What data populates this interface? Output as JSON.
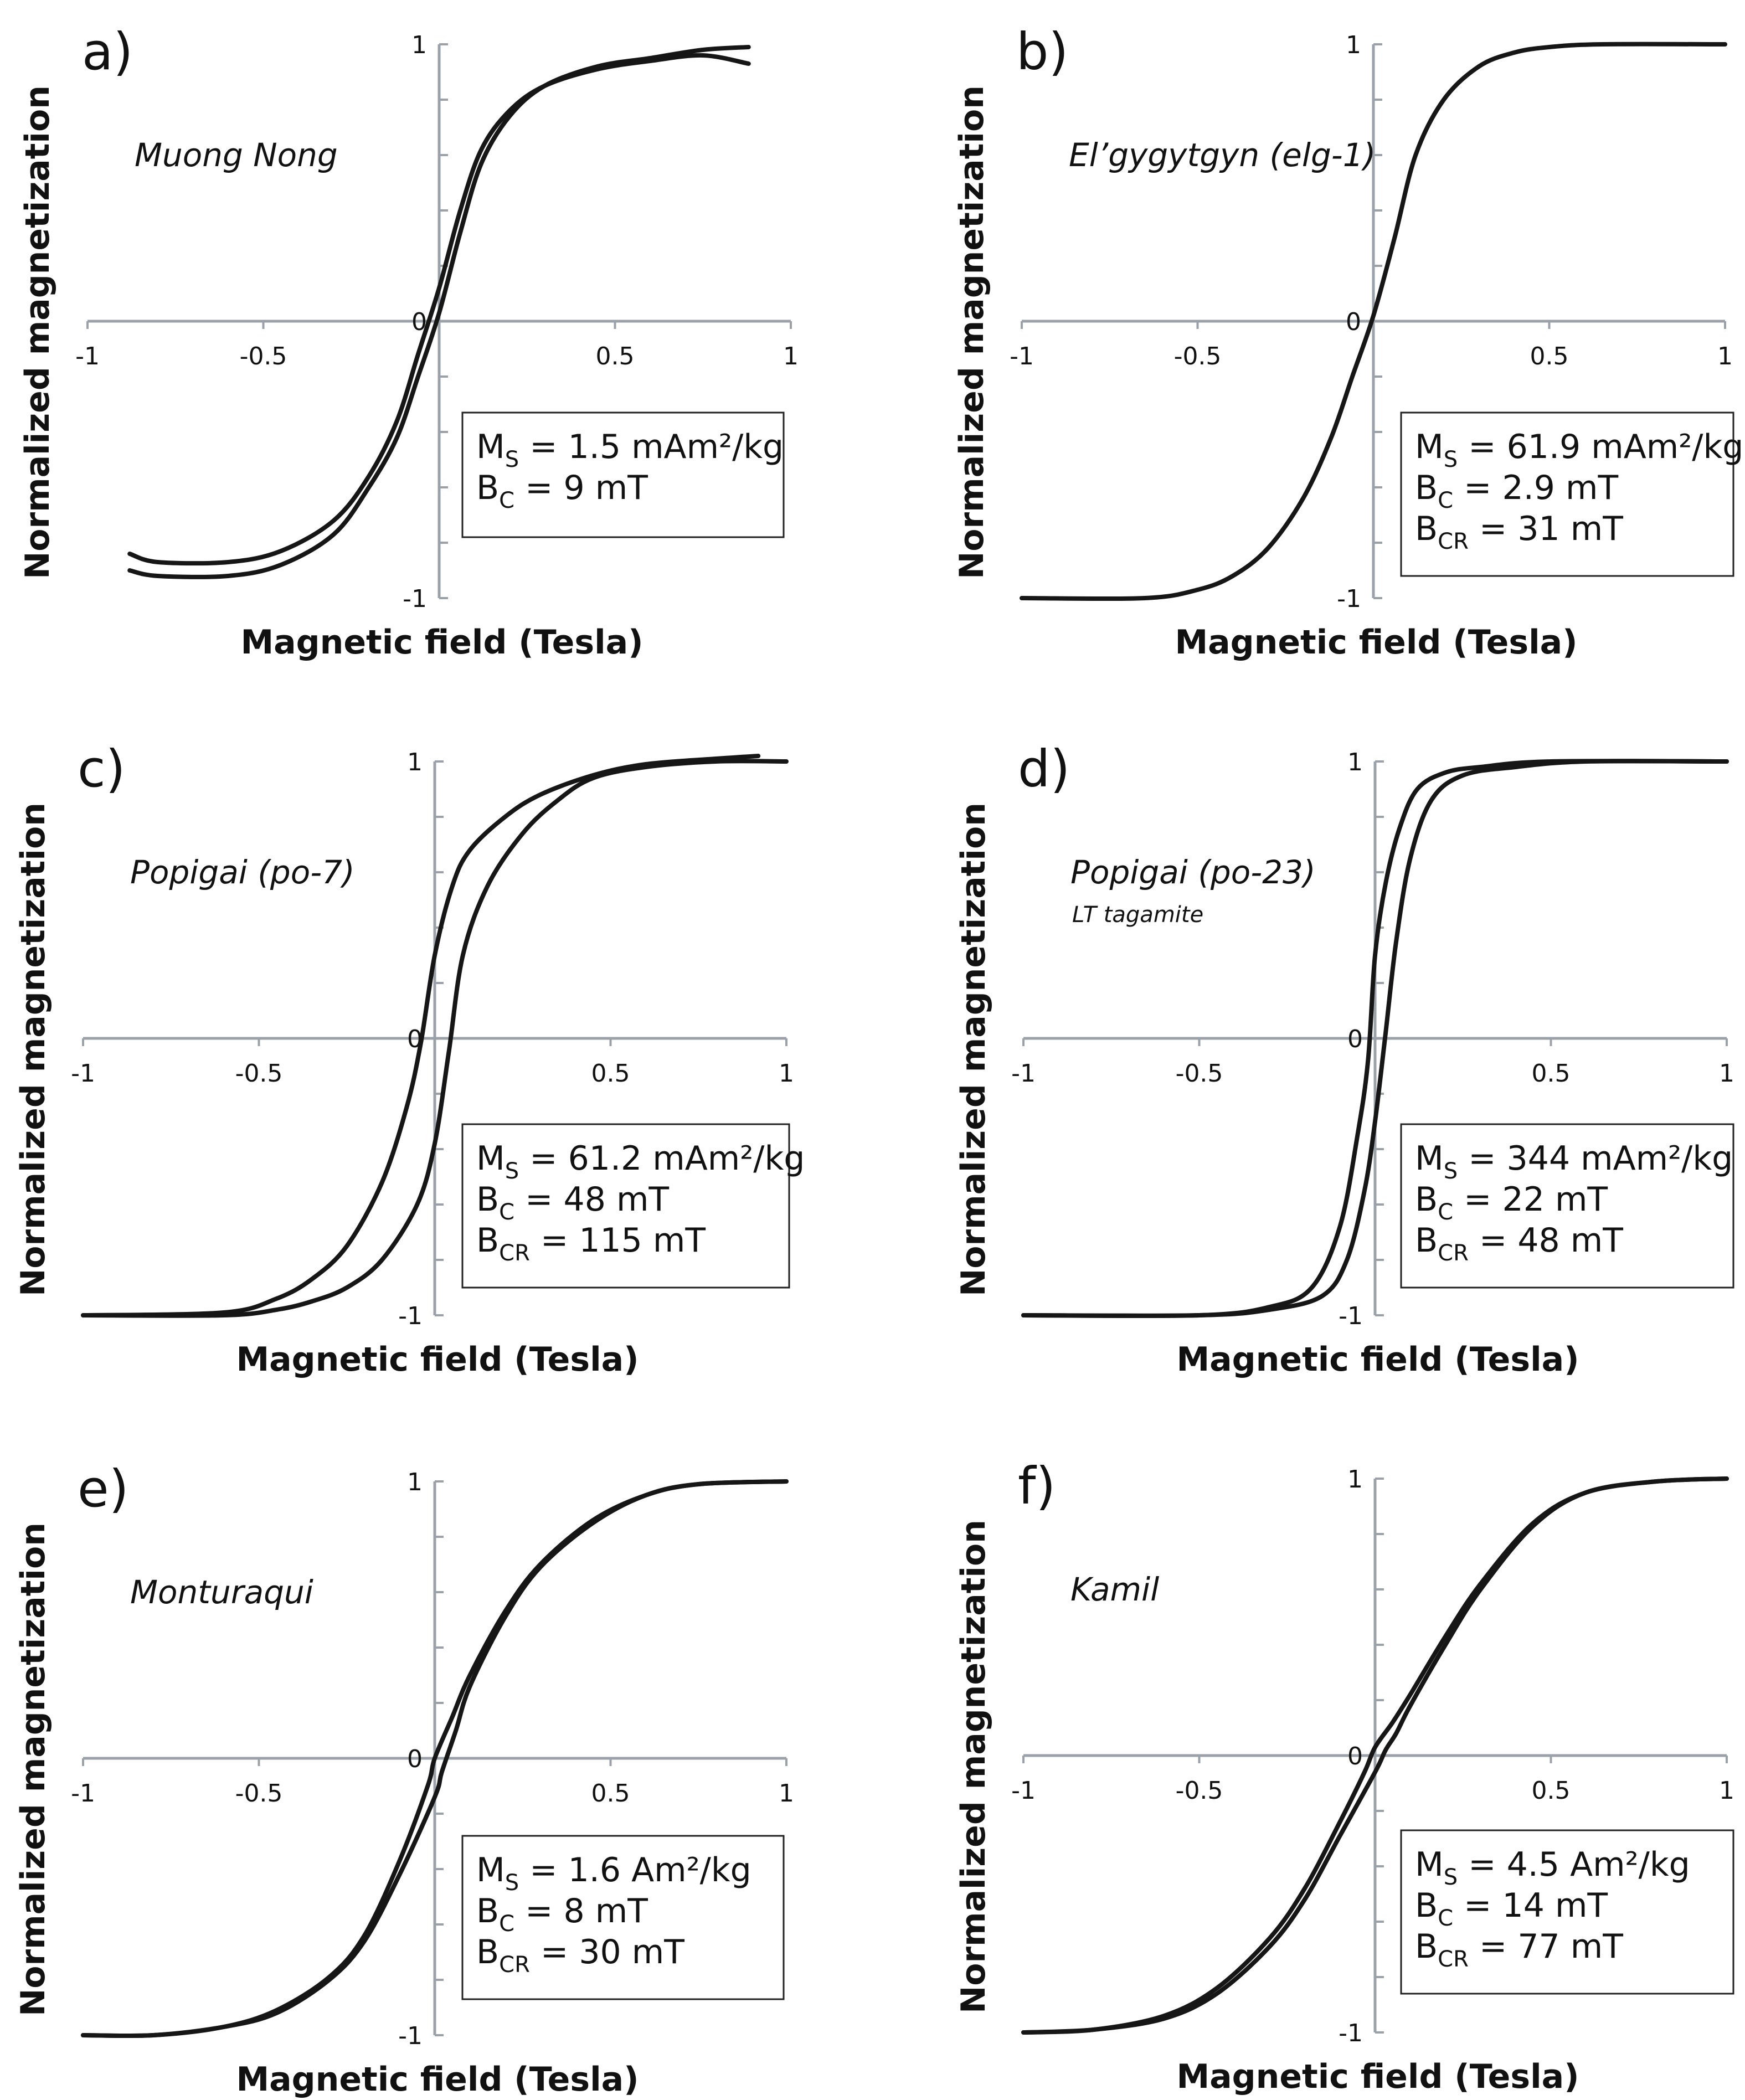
{
  "figure": {
    "x_axis_title": "Magnetic field (Tesla)",
    "y_axis_title": "Normalized magnetization",
    "axis_color": "#9aa1a8",
    "curve_color": "#161616"
  },
  "chart_data": [
    {
      "type": "line",
      "panel": "a)",
      "sample": "Muong Nong",
      "subtitle": "",
      "xlabel": "Magnetic field (Tesla)",
      "ylabel": "Normalized magnetization",
      "xlim": [
        -1,
        1
      ],
      "ylim": [
        -1,
        1
      ],
      "x_ticks": [
        "-1",
        "-0.5",
        "0",
        "0.5",
        "1"
      ],
      "y_ticks": [
        "1",
        "0",
        "-1"
      ],
      "stats": [
        {
          "sym": "M",
          "sub": "S",
          "rest": " = 1.5 mAm²/kg"
        },
        {
          "sym": "B",
          "sub": "C",
          "rest": " = 9 mT"
        }
      ],
      "series": [
        {
          "name": "upper branch",
          "x": [
            -0.88,
            -0.8,
            -0.6,
            -0.45,
            -0.3,
            -0.2,
            -0.12,
            -0.06,
            0.0,
            0.06,
            0.12,
            0.2,
            0.3,
            0.45,
            0.6,
            0.75,
            0.88
          ],
          "y": [
            -0.84,
            -0.87,
            -0.87,
            -0.83,
            -0.72,
            -0.56,
            -0.36,
            -0.12,
            0.12,
            0.4,
            0.62,
            0.76,
            0.85,
            0.91,
            0.94,
            0.96,
            0.93
          ]
        },
        {
          "name": "lower branch",
          "x": [
            -0.88,
            -0.8,
            -0.6,
            -0.45,
            -0.3,
            -0.2,
            -0.12,
            -0.06,
            0.0,
            0.06,
            0.12,
            0.2,
            0.3,
            0.45,
            0.6,
            0.75,
            0.88
          ],
          "y": [
            -0.9,
            -0.92,
            -0.92,
            -0.88,
            -0.77,
            -0.6,
            -0.42,
            -0.2,
            0.03,
            0.32,
            0.57,
            0.74,
            0.85,
            0.92,
            0.95,
            0.98,
            0.99
          ]
        }
      ]
    },
    {
      "type": "line",
      "panel": "b)",
      "sample": "El’gygytgyn (elg-1)",
      "subtitle": "",
      "xlabel": "Magnetic field (Tesla)",
      "ylabel": "Normalized magnetization",
      "xlim": [
        -1,
        1
      ],
      "ylim": [
        -1,
        1
      ],
      "x_ticks": [
        "-1",
        "-0.5",
        "0",
        "0.5",
        "1"
      ],
      "y_ticks": [
        "1",
        "0",
        "-1"
      ],
      "stats": [
        {
          "sym": "M",
          "sub": "S",
          "rest": " = 61.9 mAm²/kg"
        },
        {
          "sym": "B",
          "sub": "C",
          "rest": " = 2.9 mT"
        },
        {
          "sym": "B",
          "sub": "CR",
          "rest": " = 31 mT"
        }
      ],
      "series": [
        {
          "name": "loop",
          "x": [
            -1,
            -0.65,
            -0.5,
            -0.4,
            -0.3,
            -0.2,
            -0.12,
            -0.06,
            0.0,
            0.06,
            0.12,
            0.2,
            0.3,
            0.4,
            0.5,
            0.65,
            1
          ],
          "y": [
            -1,
            -1,
            -0.97,
            -0.92,
            -0.82,
            -0.64,
            -0.42,
            -0.2,
            0.02,
            0.3,
            0.6,
            0.8,
            0.92,
            0.97,
            0.99,
            1,
            1
          ]
        }
      ]
    },
    {
      "type": "line",
      "panel": "c)",
      "sample": "Popigai (po-7)",
      "subtitle": "",
      "xlabel": "Magnetic field (Tesla)",
      "ylabel": "Normalized magnetization",
      "xlim": [
        -1,
        1
      ],
      "ylim": [
        -1,
        1
      ],
      "x_ticks": [
        "-1",
        "-0.5",
        "0",
        "0.5",
        "1"
      ],
      "y_ticks": [
        "1",
        "0",
        "-1"
      ],
      "stats": [
        {
          "sym": "M",
          "sub": "S",
          "rest": " = 61.2 mAm²/kg"
        },
        {
          "sym": "B",
          "sub": "C",
          "rest": " = 48 mT"
        },
        {
          "sym": "B",
          "sub": "CR",
          "rest": " = 115 mT"
        }
      ],
      "series": [
        {
          "name": "upper branch",
          "x": [
            -1,
            -0.6,
            -0.45,
            -0.35,
            -0.25,
            -0.15,
            -0.08,
            -0.04,
            0.0,
            0.05,
            0.1,
            0.2,
            0.3,
            0.45,
            0.6,
            0.8,
            0.92
          ],
          "y": [
            -1,
            -0.99,
            -0.94,
            -0.87,
            -0.75,
            -0.52,
            -0.25,
            -0.02,
            0.3,
            0.55,
            0.68,
            0.8,
            0.88,
            0.95,
            0.99,
            1.01,
            1.02
          ]
        },
        {
          "name": "lower branch",
          "x": [
            -1,
            -0.6,
            -0.45,
            -0.35,
            -0.25,
            -0.15,
            -0.05,
            0.0,
            0.04,
            0.08,
            0.15,
            0.25,
            0.35,
            0.45,
            0.6,
            0.8,
            1.0
          ],
          "y": [
            -1,
            -1,
            -0.98,
            -0.95,
            -0.9,
            -0.8,
            -0.6,
            -0.38,
            -0.05,
            0.3,
            0.55,
            0.74,
            0.86,
            0.94,
            0.98,
            1.0,
            1.0
          ]
        }
      ]
    },
    {
      "type": "line",
      "panel": "d)",
      "sample": "Popigai (po-23)",
      "subtitle": "LT tagamite",
      "xlabel": "Magnetic field (Tesla)",
      "ylabel": "Normalized magnetization",
      "xlim": [
        -1,
        1
      ],
      "ylim": [
        -1,
        1
      ],
      "x_ticks": [
        "-1",
        "-0.5",
        "0",
        "0.5",
        "1"
      ],
      "y_ticks": [
        "1",
        "0",
        "-1"
      ],
      "stats": [
        {
          "sym": "M",
          "sub": "S",
          "rest": " = 344 mAm²/kg"
        },
        {
          "sym": "B",
          "sub": "C",
          "rest": " = 22 mT"
        },
        {
          "sym": "B",
          "sub": "CR",
          "rest": " = 48 mT"
        }
      ],
      "series": [
        {
          "name": "upper branch",
          "x": [
            -1,
            -0.5,
            -0.3,
            -0.18,
            -0.1,
            -0.05,
            -0.02,
            0.0,
            0.03,
            0.07,
            0.12,
            0.2,
            0.3,
            0.5,
            1
          ],
          "y": [
            -1,
            -1,
            -0.97,
            -0.9,
            -0.68,
            -0.35,
            -0.08,
            0.3,
            0.56,
            0.76,
            0.9,
            0.96,
            0.98,
            1,
            1
          ]
        },
        {
          "name": "lower branch",
          "x": [
            -1,
            -0.5,
            -0.3,
            -0.15,
            -0.08,
            -0.03,
            0.0,
            0.03,
            0.06,
            0.1,
            0.16,
            0.25,
            0.4,
            0.6,
            1
          ],
          "y": [
            -1,
            -1,
            -0.98,
            -0.93,
            -0.8,
            -0.55,
            -0.3,
            0.02,
            0.35,
            0.65,
            0.86,
            0.95,
            0.98,
            1,
            1
          ]
        }
      ]
    },
    {
      "type": "line",
      "panel": "e)",
      "sample": "Monturaqui",
      "subtitle": "",
      "xlabel": "Magnetic field (Tesla)",
      "ylabel": "Normalized magnetization",
      "xlim": [
        -1,
        1
      ],
      "ylim": [
        -1,
        1
      ],
      "x_ticks": [
        "-1",
        "-0.5",
        "0",
        "0.5",
        "1"
      ],
      "y_ticks": [
        "1",
        "0",
        "-1"
      ],
      "stats": [
        {
          "sym": "M",
          "sub": "S",
          "rest": " = 1.6 Am²/kg"
        },
        {
          "sym": "B",
          "sub": "C",
          "rest": " = 8 mT"
        },
        {
          "sym": "B",
          "sub": "CR",
          "rest": " = 30 mT"
        }
      ],
      "series": [
        {
          "name": "upper branch",
          "x": [
            -1,
            -0.8,
            -0.6,
            -0.45,
            -0.3,
            -0.2,
            -0.1,
            -0.02,
            0.0,
            0.05,
            0.1,
            0.2,
            0.3,
            0.45,
            0.6,
            0.75,
            1
          ],
          "y": [
            -1,
            -1,
            -0.97,
            -0.91,
            -0.79,
            -0.64,
            -0.37,
            -0.1,
            0.0,
            0.15,
            0.3,
            0.53,
            0.7,
            0.86,
            0.95,
            0.99,
            1
          ]
        },
        {
          "name": "lower branch",
          "x": [
            -1,
            -0.8,
            -0.6,
            -0.45,
            -0.3,
            -0.2,
            -0.1,
            0.0,
            0.02,
            0.06,
            0.1,
            0.2,
            0.3,
            0.45,
            0.6,
            0.75,
            1
          ],
          "y": [
            -1,
            -1,
            -0.97,
            -0.92,
            -0.8,
            -0.66,
            -0.42,
            -0.14,
            -0.05,
            0.1,
            0.26,
            0.51,
            0.69,
            0.85,
            0.95,
            0.99,
            1
          ]
        }
      ]
    },
    {
      "type": "line",
      "panel": "f)",
      "sample": "Kamil",
      "subtitle": "",
      "xlabel": "Magnetic field (Tesla)",
      "ylabel": "Normalized magnetization",
      "xlim": [
        -1,
        1
      ],
      "ylim": [
        -1,
        1
      ],
      "x_ticks": [
        "-1",
        "-0.5",
        "0",
        "0.5",
        "1"
      ],
      "y_ticks": [
        "1",
        "0",
        "-1"
      ],
      "stats": [
        {
          "sym": "M",
          "sub": "S",
          "rest": " = 4.5 Am²/kg"
        },
        {
          "sym": "B",
          "sub": "C",
          "rest": " = 14 mT"
        },
        {
          "sym": "B",
          "sub": "CR",
          "rest": " = 77 mT"
        }
      ],
      "series": [
        {
          "name": "upper branch",
          "x": [
            -1,
            -0.8,
            -0.6,
            -0.45,
            -0.3,
            -0.2,
            -0.1,
            -0.03,
            0.0,
            0.05,
            0.1,
            0.2,
            0.3,
            0.45,
            0.6,
            0.8,
            1
          ],
          "y": [
            -1,
            -0.99,
            -0.94,
            -0.84,
            -0.66,
            -0.48,
            -0.24,
            -0.06,
            0.03,
            0.12,
            0.22,
            0.43,
            0.62,
            0.84,
            0.95,
            0.99,
            1
          ]
        },
        {
          "name": "lower branch",
          "x": [
            -1,
            -0.8,
            -0.6,
            -0.45,
            -0.3,
            -0.2,
            -0.1,
            0.0,
            0.03,
            0.06,
            0.1,
            0.2,
            0.3,
            0.45,
            0.6,
            0.8,
            1
          ],
          "y": [
            -1,
            -0.99,
            -0.95,
            -0.86,
            -0.69,
            -0.52,
            -0.29,
            -0.06,
            0.02,
            0.08,
            0.18,
            0.4,
            0.6,
            0.83,
            0.95,
            0.99,
            1
          ]
        }
      ]
    }
  ]
}
